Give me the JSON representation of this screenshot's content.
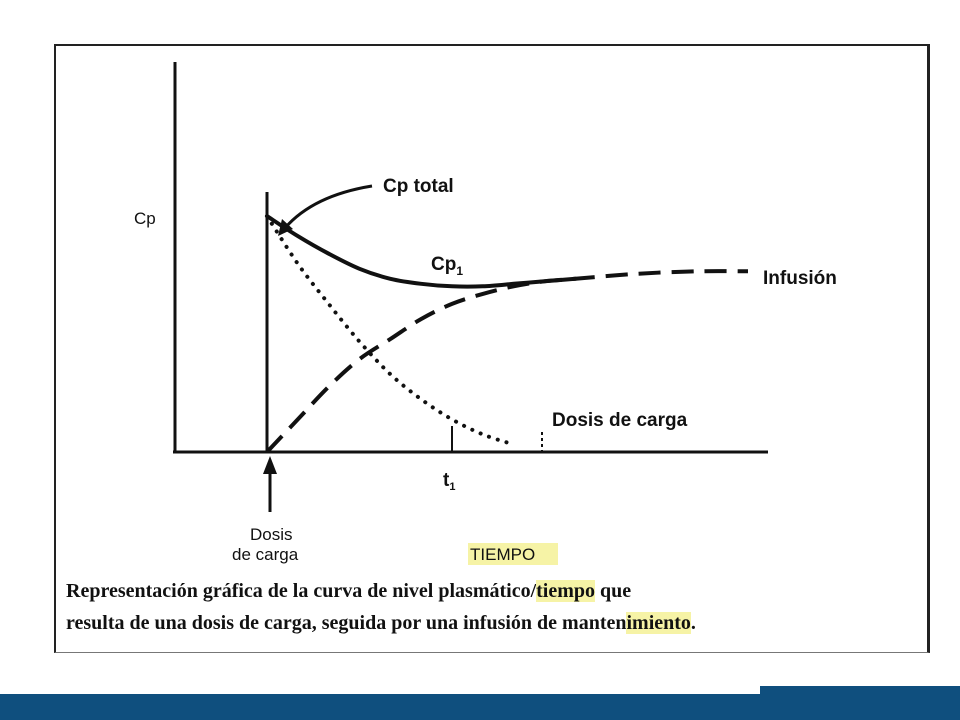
{
  "chart_data": {
    "type": "line",
    "ylabel": "Cp",
    "xlabel": "TIEMPO",
    "x_tick_label": "t",
    "x_tick_subscript": "1",
    "xlim": [
      0,
      10
    ],
    "ylim": [
      0,
      10
    ],
    "t1": 3.0,
    "loading_dose_time": 0,
    "series": [
      {
        "name": "Cp total",
        "style": "solid",
        "points": [
          [
            0,
            9.4
          ],
          [
            0.5,
            8.6
          ],
          [
            1,
            7.9
          ],
          [
            1.5,
            7.3
          ],
          [
            2,
            6.9
          ],
          [
            2.5,
            6.7
          ],
          [
            3,
            6.6
          ],
          [
            3.5,
            6.6
          ],
          [
            4,
            6.7
          ],
          [
            4.5,
            6.8
          ],
          [
            5,
            6.9
          ]
        ]
      },
      {
        "name": "Infusión",
        "style": "dashed",
        "points": [
          [
            0,
            0
          ],
          [
            0.5,
            1.3
          ],
          [
            1,
            2.6
          ],
          [
            1.5,
            3.7
          ],
          [
            2,
            4.5
          ],
          [
            2.5,
            5.3
          ],
          [
            3,
            5.9
          ],
          [
            3.5,
            6.3
          ],
          [
            4,
            6.6
          ],
          [
            4.5,
            6.8
          ],
          [
            5,
            6.9
          ],
          [
            6,
            7.1
          ],
          [
            7,
            7.2
          ],
          [
            7.8,
            7.2
          ]
        ]
      },
      {
        "name": "Dosis de carga",
        "style": "dotted",
        "points": [
          [
            0,
            9.4
          ],
          [
            0.5,
            7.5
          ],
          [
            1,
            5.9
          ],
          [
            1.5,
            4.4
          ],
          [
            2,
            3.1
          ],
          [
            2.5,
            2.1
          ],
          [
            3,
            1.3
          ],
          [
            3.5,
            0.7
          ],
          [
            4,
            0.3
          ]
        ]
      }
    ],
    "annotations": [
      {
        "text": "Cp total",
        "subscript": ""
      },
      {
        "text": "Cp",
        "subscript": "1"
      },
      {
        "text": "Infusión",
        "subscript": ""
      },
      {
        "text": "Dosis de carga",
        "subscript": ""
      }
    ],
    "arrow_label": [
      "Dosis",
      "de carga"
    ]
  },
  "caption": {
    "part1": "Representación gráfica de la curva de nivel plasmático/",
    "highlight1": "tiempo",
    "part2": " que",
    "part3": "resulta de una dosis de carga, seguida por una infusión de manten",
    "highlight2": "imiento",
    "part4": "."
  },
  "colors": {
    "line": "#111111",
    "highlight": "#f6f3a6",
    "bottom_bar": "#0f4f7e"
  }
}
